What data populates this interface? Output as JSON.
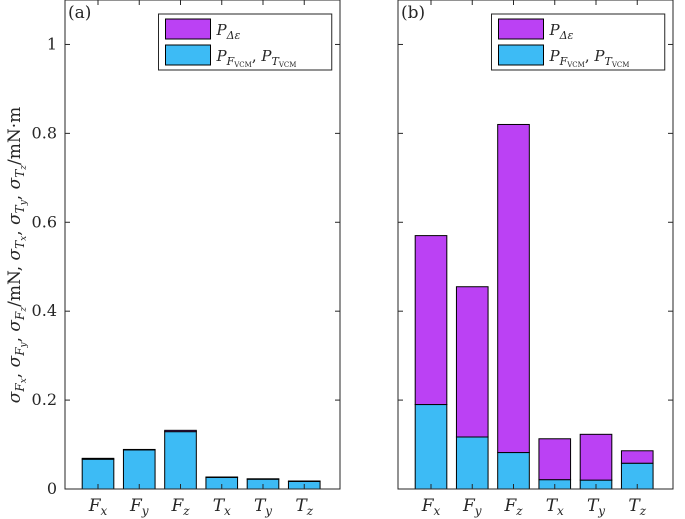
{
  "chart_data": [
    {
      "type": "bar",
      "stacked": true,
      "panel_label": "(a)",
      "categories": [
        "Fx",
        "Fy",
        "Fz",
        "Tx",
        "Ty",
        "Tz"
      ],
      "categories_display": [
        {
          "base": "F",
          "sub": "x"
        },
        {
          "base": "F",
          "sub": "y"
        },
        {
          "base": "F",
          "sub": "z"
        },
        {
          "base": "T",
          "sub": "x"
        },
        {
          "base": "T",
          "sub": "y"
        },
        {
          "base": "T",
          "sub": "z"
        }
      ],
      "series": [
        {
          "name": "P_FVCM, P_TVCM",
          "color": "#3dbbf5",
          "values": [
            0.067,
            0.088,
            0.129,
            0.026,
            0.022,
            0.017
          ]
        },
        {
          "name": "P_Δε",
          "color": "#bb41f4",
          "values": [
            0.002,
            0.001,
            0.003,
            0.001,
            0.001,
            0.001
          ]
        }
      ],
      "ylim": [
        0,
        1.1
      ],
      "yticks": [
        "0",
        "0.2",
        "0.4",
        "0.6",
        "0.8",
        "1"
      ],
      "ylabel": "σFx, σFy, σFz/mN, σTx, σTy, σTz/mN·m",
      "legend": "top-right",
      "grid": false
    },
    {
      "type": "bar",
      "stacked": true,
      "panel_label": "(b)",
      "categories": [
        "Fx",
        "Fy",
        "Fz",
        "Tx",
        "Ty",
        "Tz"
      ],
      "categories_display": [
        {
          "base": "F",
          "sub": "x"
        },
        {
          "base": "F",
          "sub": "y"
        },
        {
          "base": "F",
          "sub": "z"
        },
        {
          "base": "T",
          "sub": "x"
        },
        {
          "base": "T",
          "sub": "y"
        },
        {
          "base": "T",
          "sub": "z"
        }
      ],
      "series": [
        {
          "name": "P_FVCM, P_TVCM",
          "color": "#3dbbf5",
          "values": [
            0.19,
            0.117,
            0.082,
            0.021,
            0.02,
            0.058
          ]
        },
        {
          "name": "P_Δε",
          "color": "#bb41f4",
          "values": [
            0.38,
            0.338,
            0.738,
            0.092,
            0.103,
            0.028
          ]
        }
      ],
      "ylim": [
        0,
        1.1
      ],
      "legend": "top-right",
      "grid": false
    }
  ]
}
